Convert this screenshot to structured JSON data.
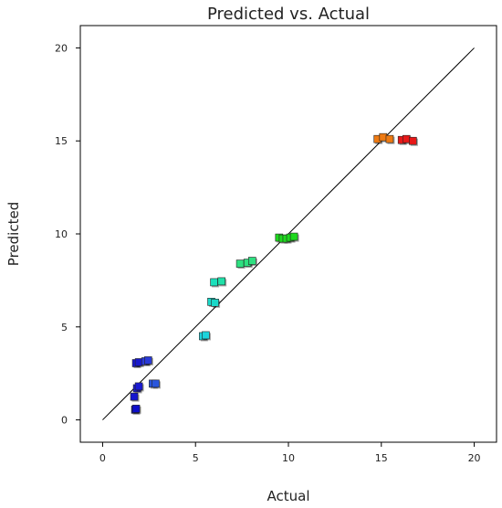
{
  "chart_data": {
    "type": "scatter",
    "title": "Predicted vs. Actual",
    "xlabel": "Actual",
    "ylabel": "Predicted",
    "xlim": [
      -1.2,
      21.2
    ],
    "ylim": [
      -1.2,
      21.2
    ],
    "xticks": [
      0,
      5,
      10,
      15,
      20
    ],
    "yticks": [
      0,
      5,
      10,
      15,
      20
    ],
    "grid": false,
    "legend": "none",
    "reference_line": {
      "from": [
        0,
        0
      ],
      "to": [
        20,
        20
      ],
      "color": "#000000"
    },
    "points": [
      {
        "x": 1.75,
        "y": 0.55,
        "color": "#0d0dcc"
      },
      {
        "x": 1.8,
        "y": 0.6,
        "color": "#0d0dcc"
      },
      {
        "x": 1.7,
        "y": 1.25,
        "color": "#1515d0"
      },
      {
        "x": 1.85,
        "y": 1.7,
        "color": "#1a1ad4"
      },
      {
        "x": 1.95,
        "y": 1.8,
        "color": "#1a1ad4"
      },
      {
        "x": 1.8,
        "y": 3.05,
        "color": "#1818cc"
      },
      {
        "x": 1.95,
        "y": 3.1,
        "color": "#1818cc"
      },
      {
        "x": 2.3,
        "y": 3.15,
        "color": "#2a3ad8"
      },
      {
        "x": 2.45,
        "y": 3.2,
        "color": "#2a3ad8"
      },
      {
        "x": 2.7,
        "y": 1.95,
        "color": "#2a56dc"
      },
      {
        "x": 2.85,
        "y": 1.95,
        "color": "#2a56dc"
      },
      {
        "x": 5.4,
        "y": 4.5,
        "color": "#1cd4dc"
      },
      {
        "x": 5.55,
        "y": 4.55,
        "color": "#1cd4dc"
      },
      {
        "x": 5.85,
        "y": 6.35,
        "color": "#1ad8c8"
      },
      {
        "x": 6.05,
        "y": 6.3,
        "color": "#1ad8c8"
      },
      {
        "x": 6.0,
        "y": 7.4,
        "color": "#1ce0bc"
      },
      {
        "x": 6.4,
        "y": 7.45,
        "color": "#20e0a8"
      },
      {
        "x": 7.4,
        "y": 8.4,
        "color": "#2ee080"
      },
      {
        "x": 7.8,
        "y": 8.45,
        "color": "#2ee080"
      },
      {
        "x": 8.05,
        "y": 8.55,
        "color": "#2ee080"
      },
      {
        "x": 9.5,
        "y": 9.8,
        "color": "#1ed81e"
      },
      {
        "x": 9.7,
        "y": 9.75,
        "color": "#1ed81e"
      },
      {
        "x": 9.9,
        "y": 9.75,
        "color": "#1ed81e"
      },
      {
        "x": 10.1,
        "y": 9.8,
        "color": "#1ed81e"
      },
      {
        "x": 10.3,
        "y": 9.85,
        "color": "#1ed81e"
      },
      {
        "x": 14.8,
        "y": 15.1,
        "color": "#ee7a12"
      },
      {
        "x": 15.1,
        "y": 15.2,
        "color": "#ee7a12"
      },
      {
        "x": 15.45,
        "y": 15.1,
        "color": "#ee7a12"
      },
      {
        "x": 16.1,
        "y": 15.05,
        "color": "#e81818"
      },
      {
        "x": 16.35,
        "y": 15.1,
        "color": "#e81818"
      },
      {
        "x": 16.7,
        "y": 15.0,
        "color": "#e81818"
      }
    ]
  }
}
